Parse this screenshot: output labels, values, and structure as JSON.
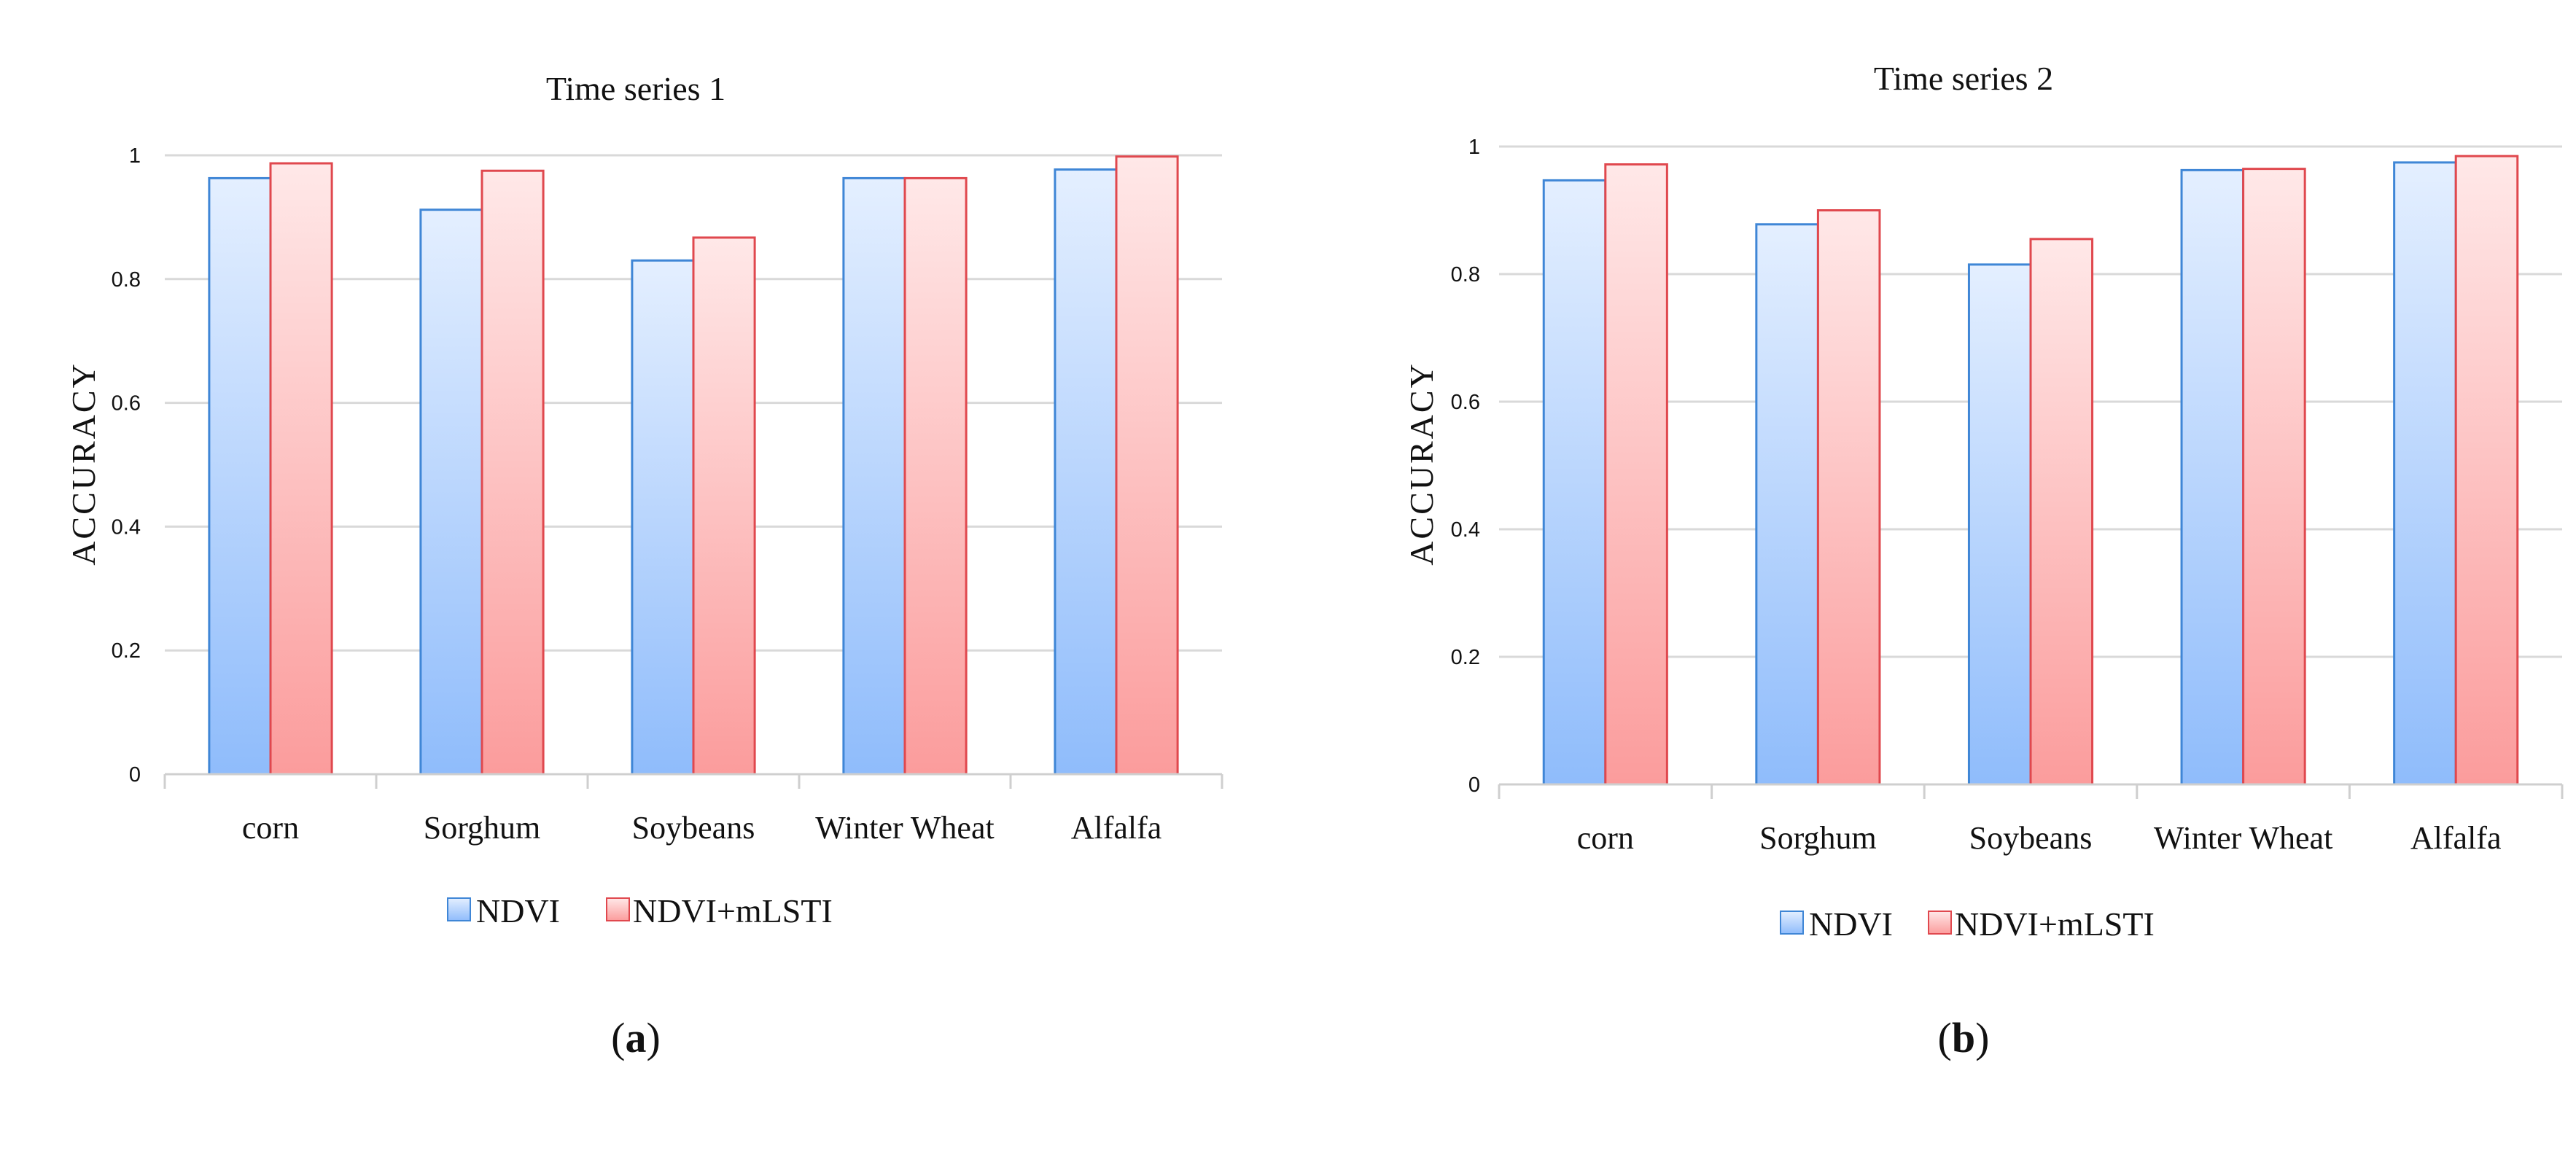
{
  "series_colors": {
    "NDVI": {
      "top": "#e4efff",
      "bottom": "#8fbcfb",
      "stroke": "#3f86d6"
    },
    "NDVI+mLSTI": {
      "top": "#ffe8e8",
      "bottom": "#fb9c9c",
      "stroke": "#e0484e"
    }
  },
  "chart_data": [
    {
      "type": "bar",
      "panel_label": "a",
      "title": "Time series 1",
      "xlabel": "",
      "ylabel": "ACCURACY",
      "ylim": [
        0,
        1
      ],
      "yticks": [
        0,
        0.2,
        0.4,
        0.6,
        0.8,
        1
      ],
      "ytick_labels": [
        "0",
        "0.2",
        "0.4",
        "0.6",
        "0.8",
        "1"
      ],
      "grid": true,
      "legend_position": "bottom",
      "categories": [
        "corn",
        "Sorghum",
        "Soybeans",
        "Winter Wheat",
        "Alfalfa"
      ],
      "series": [
        {
          "name": "NDVI",
          "values": [
            0.963,
            0.912,
            0.83,
            0.963,
            0.977
          ]
        },
        {
          "name": "NDVI+mLSTI",
          "values": [
            0.987,
            0.975,
            0.867,
            0.963,
            0.998
          ]
        }
      ]
    },
    {
      "type": "bar",
      "panel_label": "b",
      "title": "Time series 2",
      "xlabel": "",
      "ylabel": "ACCURACY",
      "ylim": [
        0,
        1
      ],
      "yticks": [
        0,
        0.2,
        0.4,
        0.6,
        0.8,
        1
      ],
      "ytick_labels": [
        "0",
        "0.2",
        "0.4",
        "0.6",
        "0.8",
        "1"
      ],
      "grid": true,
      "legend_position": "bottom",
      "categories": [
        "corn",
        "Sorghum",
        "Soybeans",
        "Winter Wheat",
        "Alfalfa"
      ],
      "series": [
        {
          "name": "NDVI",
          "values": [
            0.947,
            0.878,
            0.815,
            0.963,
            0.975
          ]
        },
        {
          "name": "NDVI+mLSTI",
          "values": [
            0.972,
            0.9,
            0.855,
            0.965,
            0.985
          ]
        }
      ]
    }
  ]
}
